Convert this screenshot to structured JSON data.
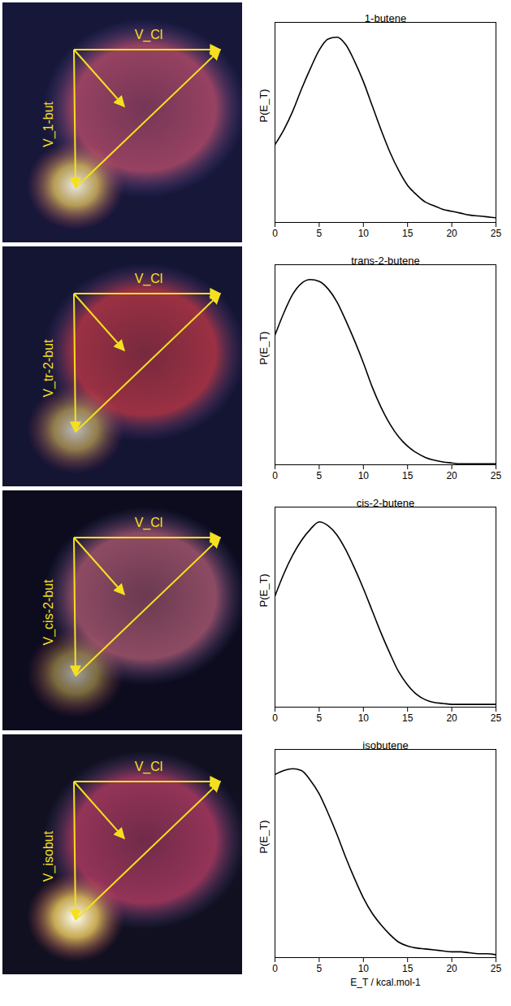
{
  "images": [
    {
      "labels": [
        "V_Cl",
        "V_1-but"
      ]
    },
    {
      "labels": [
        "V_Cl",
        "V_tr-2-but"
      ]
    },
    {
      "labels": [
        "V_Cl",
        "V_cis-2-but"
      ]
    },
    {
      "labels": [
        "V_Cl",
        "V_isobut"
      ]
    }
  ],
  "chart_data": [
    {
      "type": "line",
      "title": "1-butene",
      "y_label": "P(E_T)",
      "x_label": null,
      "x": [
        0,
        1,
        2,
        3,
        4,
        5,
        6,
        7,
        8,
        9,
        10,
        11,
        12,
        13,
        14,
        15,
        16,
        17,
        18,
        19,
        20,
        21,
        22,
        23,
        24,
        25
      ],
      "values": [
        0.42,
        0.5,
        0.6,
        0.72,
        0.83,
        0.93,
        0.99,
        1.0,
        0.96,
        0.87,
        0.76,
        0.63,
        0.5,
        0.38,
        0.28,
        0.2,
        0.15,
        0.11,
        0.09,
        0.07,
        0.06,
        0.05,
        0.04,
        0.035,
        0.03,
        0.025
      ],
      "color": "#000000",
      "xlim": [
        0,
        25
      ],
      "xticks": [
        0,
        5,
        10,
        15,
        20,
        25
      ],
      "ylim": [
        0,
        1.08
      ],
      "yticks": [],
      "tick_labels": "x"
    },
    {
      "type": "line",
      "title": "trans-2-butene",
      "y_label": "P(E_T)",
      "x_label": null,
      "x": [
        0,
        1,
        2,
        3,
        4,
        5,
        6,
        7,
        8,
        9,
        10,
        11,
        12,
        13,
        14,
        15,
        16,
        17,
        18,
        19,
        20,
        21,
        22,
        23,
        24,
        25
      ],
      "values": [
        0.7,
        0.82,
        0.92,
        0.98,
        1.0,
        0.99,
        0.95,
        0.88,
        0.78,
        0.67,
        0.55,
        0.42,
        0.31,
        0.22,
        0.15,
        0.1,
        0.065,
        0.04,
        0.025,
        0.015,
        0.01,
        0.005,
        0.005,
        0.005,
        0.005,
        0.005
      ],
      "color": "#000000",
      "xlim": [
        0,
        25
      ],
      "xticks": [
        0,
        5,
        10,
        15,
        20,
        25
      ],
      "ylim": [
        0,
        1.08
      ],
      "yticks": [],
      "tick_labels": "x"
    },
    {
      "type": "line",
      "title": "cis-2-butene",
      "y_label": "P(E_T)",
      "x_label": null,
      "x": [
        0,
        1,
        2,
        3,
        4,
        5,
        6,
        7,
        8,
        9,
        10,
        11,
        12,
        13,
        14,
        15,
        16,
        17,
        18,
        19,
        20,
        21,
        22,
        23,
        24,
        25
      ],
      "values": [
        0.6,
        0.72,
        0.82,
        0.9,
        0.96,
        1.0,
        0.98,
        0.93,
        0.85,
        0.75,
        0.64,
        0.52,
        0.4,
        0.29,
        0.19,
        0.12,
        0.07,
        0.04,
        0.025,
        0.02,
        0.015,
        0.015,
        0.015,
        0.015,
        0.015,
        0.015
      ],
      "color": "#000000",
      "xlim": [
        0,
        25
      ],
      "xticks": [
        0,
        5,
        10,
        15,
        20,
        25
      ],
      "ylim": [
        0,
        1.08
      ],
      "yticks": [],
      "tick_labels": "x"
    },
    {
      "type": "line",
      "title": "isobutene",
      "y_label": "P(E_T)",
      "x_label": "E_T / kcal.mol-1",
      "x": [
        0,
        1,
        2,
        3,
        4,
        5,
        6,
        7,
        8,
        9,
        10,
        11,
        12,
        13,
        14,
        15,
        16,
        17,
        18,
        19,
        20,
        21,
        22,
        23,
        24,
        25
      ],
      "values": [
        0.95,
        0.97,
        0.98,
        0.97,
        0.92,
        0.85,
        0.75,
        0.64,
        0.52,
        0.41,
        0.31,
        0.23,
        0.17,
        0.12,
        0.08,
        0.06,
        0.05,
        0.045,
        0.04,
        0.035,
        0.03,
        0.03,
        0.025,
        0.02,
        0.02,
        0.015
      ],
      "color": "#000000",
      "xlim": [
        0,
        25
      ],
      "xticks": [
        0,
        5,
        10,
        15,
        20,
        25
      ],
      "ylim": [
        0,
        1.08
      ],
      "yticks": [],
      "tick_labels": "x"
    }
  ]
}
